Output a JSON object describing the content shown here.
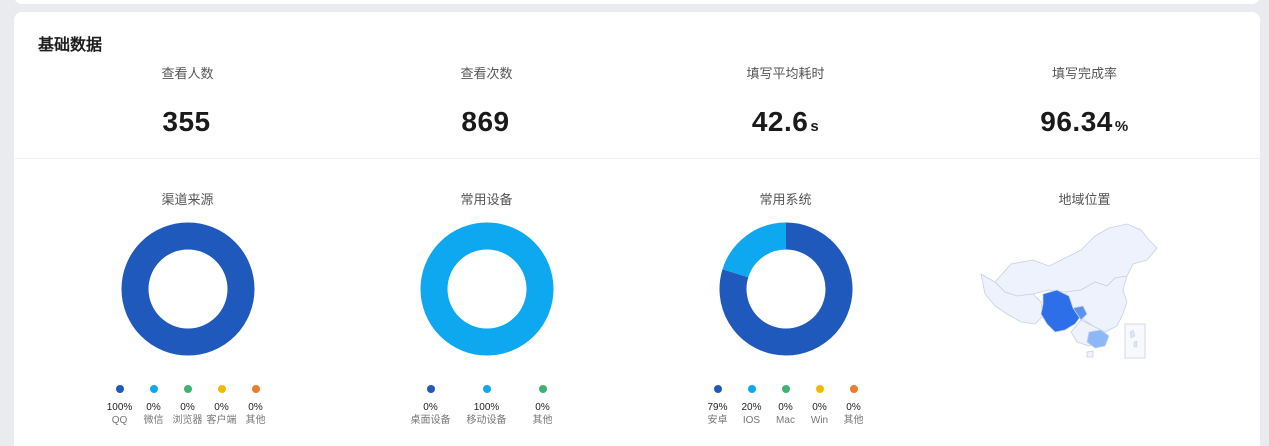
{
  "section_title": "基础数据",
  "stats": [
    {
      "label": "查看人数",
      "value": "355",
      "unit": ""
    },
    {
      "label": "查看次数",
      "value": "869",
      "unit": ""
    },
    {
      "label": "填写平均耗时",
      "value": "42.6",
      "unit": "s"
    },
    {
      "label": "填写完成率",
      "value": "96.34",
      "unit": "%"
    }
  ],
  "charts": {
    "channel": {
      "title": "渠道来源",
      "legend": [
        {
          "name": "QQ",
          "value": "100%",
          "color": "#1f59bb"
        },
        {
          "name": "微信",
          "value": "0%",
          "color": "#0da8ef"
        },
        {
          "name": "浏览器",
          "value": "0%",
          "color": "#3cb371"
        },
        {
          "name": "客户端",
          "value": "0%",
          "color": "#f5b800"
        },
        {
          "name": "其他",
          "value": "0%",
          "color": "#f07b2a"
        }
      ]
    },
    "device": {
      "title": "常用设备",
      "legend": [
        {
          "name": "桌面设备",
          "value": "0%",
          "color": "#1f59bb"
        },
        {
          "name": "移动设备",
          "value": "100%",
          "color": "#0da8ef"
        },
        {
          "name": "其他",
          "value": "0%",
          "color": "#3cb371"
        }
      ]
    },
    "system": {
      "title": "常用系统",
      "legend": [
        {
          "name": "安卓",
          "value": "79%",
          "color": "#1f59bb"
        },
        {
          "name": "IOS",
          "value": "20%",
          "color": "#0da8ef"
        },
        {
          "name": "Mac",
          "value": "0%",
          "color": "#3cb371"
        },
        {
          "name": "Win",
          "value": "0%",
          "color": "#f5b800"
        },
        {
          "name": "其他",
          "value": "0%",
          "color": "#f07b2a"
        }
      ]
    },
    "region": {
      "title": "地域位置"
    }
  },
  "chart_data": [
    {
      "type": "pie",
      "title": "渠道来源",
      "categories": [
        "QQ",
        "微信",
        "浏览器",
        "客户端",
        "其他"
      ],
      "values": [
        100,
        0,
        0,
        0,
        0
      ]
    },
    {
      "type": "pie",
      "title": "常用设备",
      "categories": [
        "桌面设备",
        "移动设备",
        "其他"
      ],
      "values": [
        0,
        100,
        0
      ]
    },
    {
      "type": "pie",
      "title": "常用系统",
      "categories": [
        "安卓",
        "IOS",
        "Mac",
        "Win",
        "其他"
      ],
      "values": [
        79,
        20,
        0,
        0,
        0
      ]
    }
  ]
}
